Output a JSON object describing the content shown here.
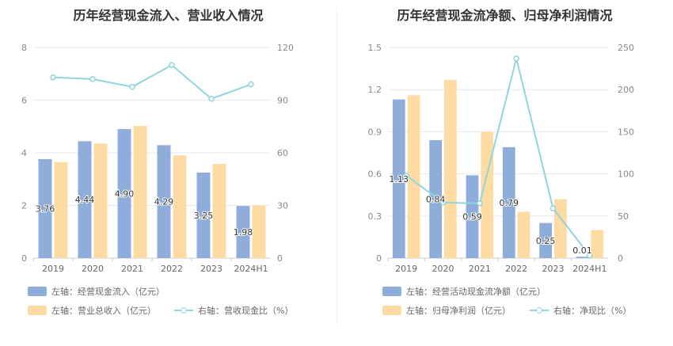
{
  "chart_data": [
    {
      "type": "bar",
      "title": "历年经营现金流入、营业收入情况",
      "categories": [
        "2019",
        "2020",
        "2021",
        "2022",
        "2023",
        "2024H1"
      ],
      "ylim_left": [
        0,
        8
      ],
      "yticks_left": [
        "0",
        "2",
        "4",
        "6",
        "8"
      ],
      "ylim_right": [
        0,
        120
      ],
      "yticks_right": [
        "0",
        "30",
        "60",
        "90",
        "120"
      ],
      "grid": true,
      "legend_position": "bottom",
      "series": [
        {
          "name": "左轴：经营现金流入（亿元）",
          "axis": "left",
          "kind": "bar",
          "color": "#8eadda",
          "values": [
            3.76,
            4.44,
            4.9,
            4.29,
            3.25,
            1.98
          ],
          "labels": [
            "3.76",
            "4.44",
            "4.90",
            "4.29",
            "3.25",
            "1.98"
          ]
        },
        {
          "name": "左轴：营业总收入（亿元）",
          "axis": "left",
          "kind": "bar",
          "color": "#fddba3",
          "values": [
            3.65,
            4.35,
            5.02,
            3.9,
            3.58,
            2.0
          ]
        },
        {
          "name": "右轴：营收现金比（%）",
          "axis": "right",
          "kind": "line",
          "color": "#8fd6dc",
          "values": [
            103.0,
            102.0,
            97.6,
            110.0,
            90.8,
            99.0
          ]
        }
      ]
    },
    {
      "type": "bar",
      "title": "历年经营现金流净额、归母净利润情况",
      "categories": [
        "2019",
        "2020",
        "2021",
        "2022",
        "2023",
        "2024H1"
      ],
      "ylim_left": [
        0,
        1.5
      ],
      "yticks_left": [
        "0",
        "0.3",
        "0.6",
        "0.9",
        "1.2",
        "1.5"
      ],
      "ylim_right": [
        0,
        250
      ],
      "yticks_right": [
        "0",
        "50",
        "100",
        "150",
        "200",
        "250"
      ],
      "grid": true,
      "legend_position": "bottom",
      "series": [
        {
          "name": "左轴：经营活动现金流净额（亿元）",
          "axis": "left",
          "kind": "bar",
          "color": "#8eadda",
          "values": [
            1.13,
            0.84,
            0.59,
            0.79,
            0.25,
            0.01
          ],
          "labels": [
            "1.13",
            "0.84",
            "0.59",
            "0.79",
            "0.25",
            "0.01"
          ]
        },
        {
          "name": "左轴：归母净利润（亿元）",
          "axis": "left",
          "kind": "bar",
          "color": "#fddba3",
          "values": [
            1.16,
            1.27,
            0.9,
            0.33,
            0.42,
            0.2
          ]
        },
        {
          "name": "右轴：净现比（%）",
          "axis": "right",
          "kind": "line",
          "color": "#8fd6dc",
          "values": [
            98,
            66,
            65,
            237,
            59,
            3
          ]
        }
      ]
    }
  ]
}
